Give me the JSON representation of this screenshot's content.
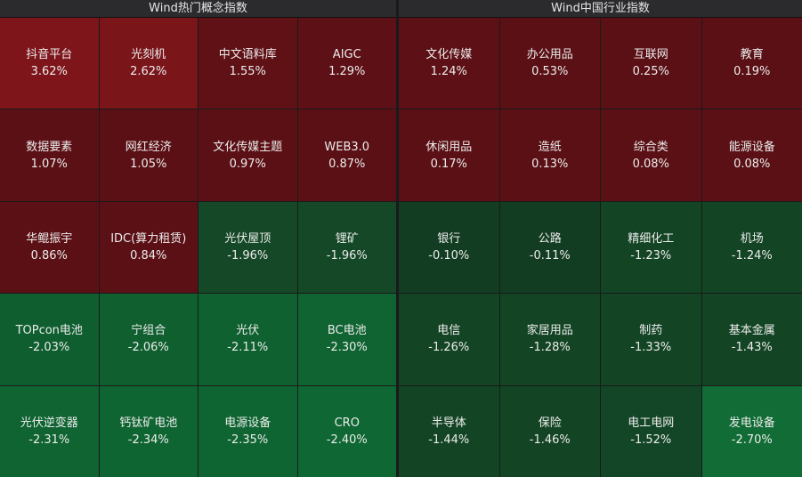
{
  "panels": [
    {
      "title": "Wind热门概念指数",
      "cells": [
        {
          "label": "抖音平台",
          "value": "3.62%",
          "color": "#7e151b"
        },
        {
          "label": "光刻机",
          "value": "2.62%",
          "color": "#7a151a"
        },
        {
          "label": "中文语料库",
          "value": "1.55%",
          "color": "#5f1116"
        },
        {
          "label": "AIGC",
          "value": "1.29%",
          "color": "#5d1015"
        },
        {
          "label": "数据要素",
          "value": "1.07%",
          "color": "#5b1015"
        },
        {
          "label": "网红经济",
          "value": "1.05%",
          "color": "#5b1015"
        },
        {
          "label": "文化传媒主题",
          "value": "0.97%",
          "color": "#5b1015"
        },
        {
          "label": "WEB3.0",
          "value": "0.87%",
          "color": "#5b1015"
        },
        {
          "label": "华鲲振宇",
          "value": "0.86%",
          "color": "#5b1015"
        },
        {
          "label": "IDC(算力租赁)",
          "value": "0.84%",
          "color": "#5b1015"
        },
        {
          "label": "光伏屋顶",
          "value": "-1.96%",
          "color": "#144826"
        },
        {
          "label": "锂矿",
          "value": "-1.96%",
          "color": "#144826"
        },
        {
          "label": "TOPcon电池",
          "value": "-2.03%",
          "color": "#0f5e2f"
        },
        {
          "label": "宁组合",
          "value": "-2.06%",
          "color": "#0f5f2f"
        },
        {
          "label": "光伏",
          "value": "-2.11%",
          "color": "#0f6130"
        },
        {
          "label": "BC电池",
          "value": "-2.30%",
          "color": "#0f6431"
        },
        {
          "label": "光伏逆变器",
          "value": "-2.31%",
          "color": "#0f6431"
        },
        {
          "label": "钙钛矿电池",
          "value": "-2.34%",
          "color": "#0f6532"
        },
        {
          "label": "电源设备",
          "value": "-2.35%",
          "color": "#0f6532"
        },
        {
          "label": "CRO",
          "value": "-2.40%",
          "color": "#0f6733"
        }
      ]
    },
    {
      "title": "Wind中国行业指数",
      "cells": [
        {
          "label": "文化传媒",
          "value": "1.24%",
          "color": "#5d1015"
        },
        {
          "label": "办公用品",
          "value": "0.53%",
          "color": "#5a1015"
        },
        {
          "label": "互联网",
          "value": "0.25%",
          "color": "#5a1015"
        },
        {
          "label": "教育",
          "value": "0.19%",
          "color": "#5a1015"
        },
        {
          "label": "休闲用品",
          "value": "0.17%",
          "color": "#5a1015"
        },
        {
          "label": "造纸",
          "value": "0.13%",
          "color": "#5a1015"
        },
        {
          "label": "综合类",
          "value": "0.08%",
          "color": "#5a1015"
        },
        {
          "label": "能源设备",
          "value": "0.08%",
          "color": "#5a1015"
        },
        {
          "label": "银行",
          "value": "-0.10%",
          "color": "#133d22"
        },
        {
          "label": "公路",
          "value": "-0.11%",
          "color": "#133d22"
        },
        {
          "label": "精细化工",
          "value": "-1.23%",
          "color": "#134424"
        },
        {
          "label": "机场",
          "value": "-1.24%",
          "color": "#134424"
        },
        {
          "label": "电信",
          "value": "-1.26%",
          "color": "#134424"
        },
        {
          "label": "家居用品",
          "value": "-1.28%",
          "color": "#134424"
        },
        {
          "label": "制药",
          "value": "-1.33%",
          "color": "#134525"
        },
        {
          "label": "基本金属",
          "value": "-1.43%",
          "color": "#134525"
        },
        {
          "label": "半导体",
          "value": "-1.44%",
          "color": "#134525"
        },
        {
          "label": "保险",
          "value": "-1.46%",
          "color": "#134525"
        },
        {
          "label": "电工电网",
          "value": "-1.52%",
          "color": "#134626"
        },
        {
          "label": "发电设备",
          "value": "-2.70%",
          "color": "#116d35"
        }
      ]
    }
  ]
}
